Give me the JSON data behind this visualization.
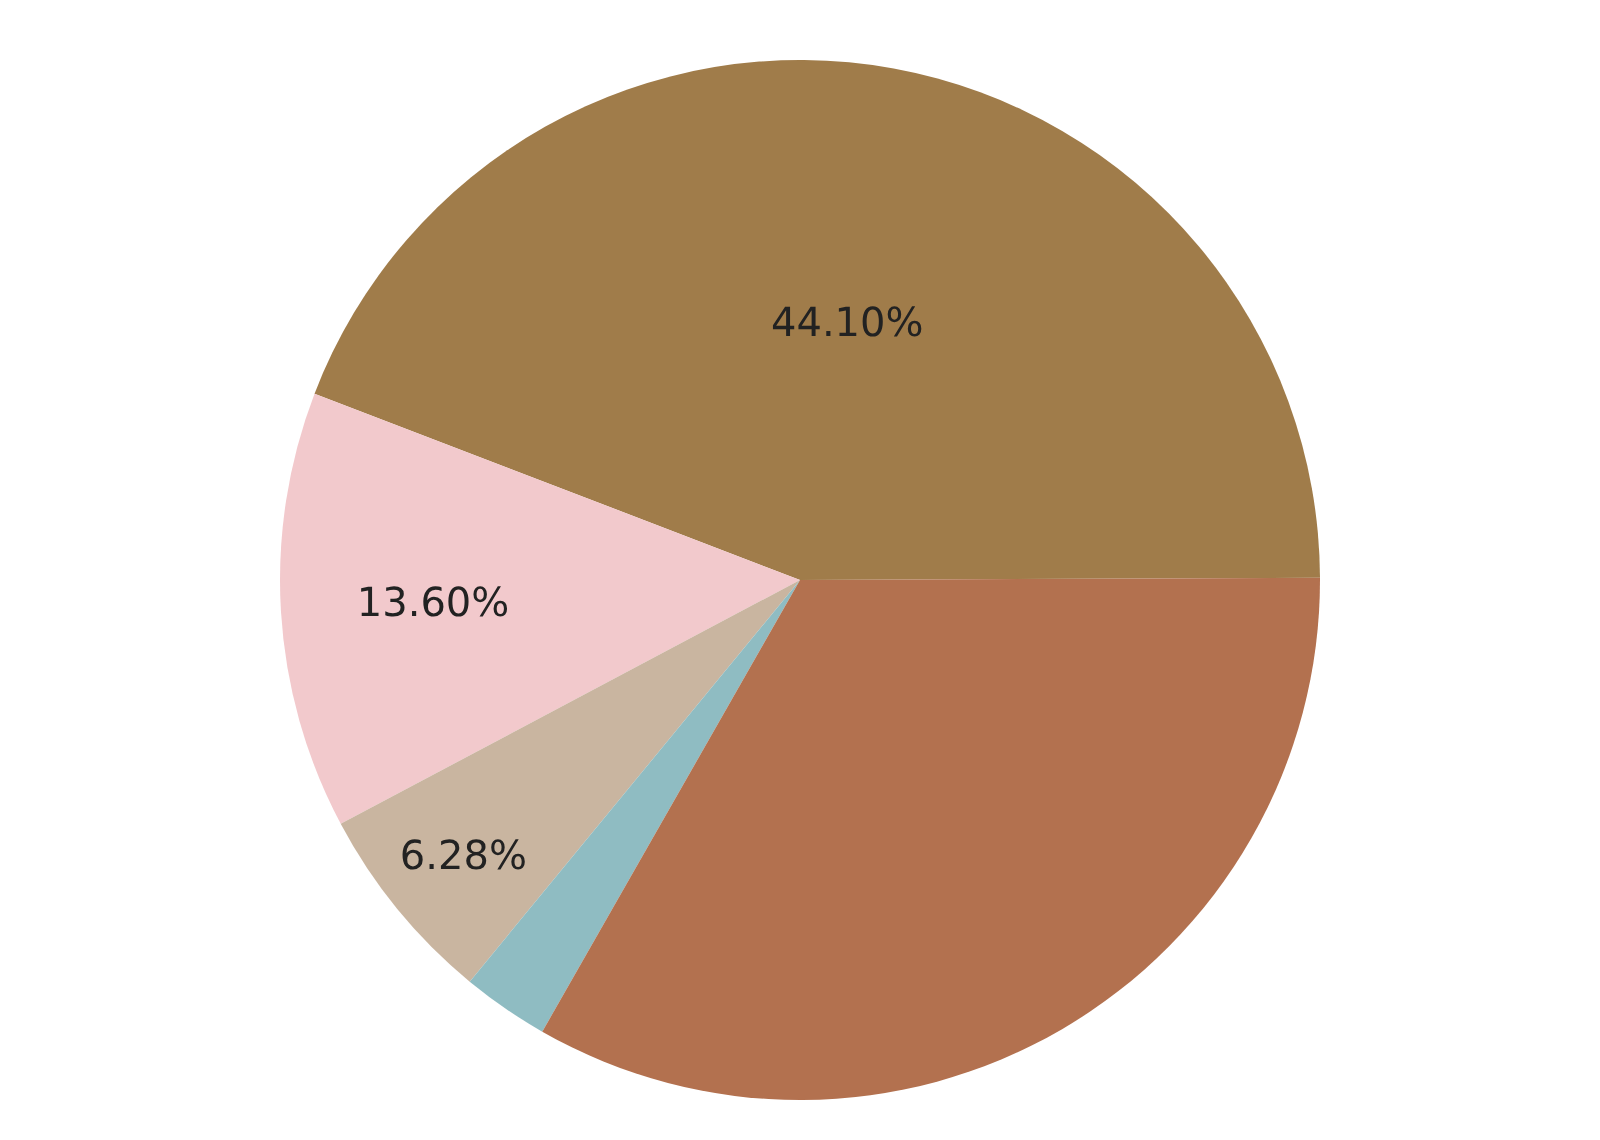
{
  "chart_data": {
    "type": "pie",
    "categories": [
      null,
      null,
      null,
      null,
      null
    ],
    "values": [
      44.1,
      13.6,
      6.28,
      2.7,
      33.32
    ],
    "colors": [
      "#a07c4a",
      "#f2c9cc",
      "#c9b5a0",
      "#8fbcc2",
      "#b3714f"
    ],
    "value_labels": [
      "44.10%",
      "13.60%",
      "6.28%",
      null,
      null
    ],
    "legend": false
  }
}
